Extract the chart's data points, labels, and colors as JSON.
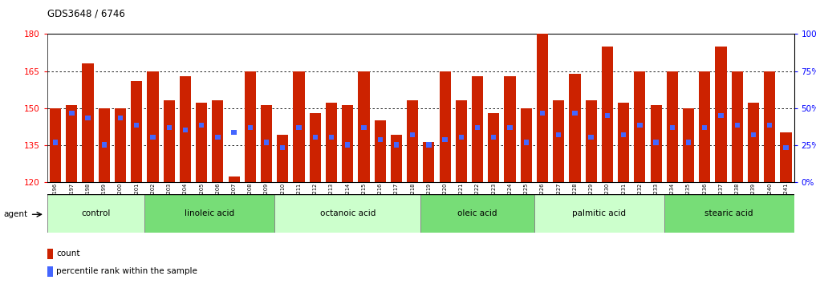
{
  "title": "GDS3648 / 6746",
  "ylim": [
    120,
    180
  ],
  "yticks": [
    120,
    135,
    150,
    165,
    180
  ],
  "right_ylabels": [
    "0%",
    "25%",
    "50%",
    "75%",
    "100%"
  ],
  "right_ytick_vals": [
    120,
    135,
    150,
    165,
    180
  ],
  "bar_color": "#CC2200",
  "percentile_color": "#4466FF",
  "bg_color": "#FFFFFF",
  "samples": [
    "GSM525196",
    "GSM525197",
    "GSM525198",
    "GSM525199",
    "GSM525200",
    "GSM525201",
    "GSM525202",
    "GSM525203",
    "GSM525204",
    "GSM525205",
    "GSM525206",
    "GSM525207",
    "GSM525208",
    "GSM525209",
    "GSM525210",
    "GSM525211",
    "GSM525212",
    "GSM525213",
    "GSM525214",
    "GSM525215",
    "GSM525216",
    "GSM525217",
    "GSM525218",
    "GSM525219",
    "GSM525220",
    "GSM525221",
    "GSM525222",
    "GSM525223",
    "GSM525224",
    "GSM525225",
    "GSM525226",
    "GSM525227",
    "GSM525228",
    "GSM525229",
    "GSM525230",
    "GSM525231",
    "GSM525232",
    "GSM525233",
    "GSM525234",
    "GSM525235",
    "GSM525236",
    "GSM525237",
    "GSM525238",
    "GSM525239",
    "GSM525240",
    "GSM525241"
  ],
  "counts": [
    150,
    151,
    168,
    150,
    150,
    161,
    165,
    153,
    163,
    152,
    153,
    122,
    165,
    151,
    139,
    165,
    148,
    152,
    151,
    165,
    145,
    139,
    153,
    136,
    165,
    153,
    163,
    148,
    163,
    150,
    180,
    153,
    164,
    153,
    175,
    152,
    165,
    151,
    165,
    150,
    165,
    175,
    165,
    152,
    165,
    140
  ],
  "percentile_values": [
    136,
    148,
    146,
    135,
    146,
    143,
    138,
    142,
    141,
    143,
    138,
    140,
    142,
    136,
    134,
    142,
    138,
    138,
    135,
    142,
    137,
    135,
    139,
    135,
    137,
    138,
    142,
    138,
    142,
    136,
    148,
    139,
    148,
    138,
    147,
    139,
    143,
    136,
    142,
    136,
    142,
    147,
    143,
    139,
    143,
    134
  ],
  "groups": [
    {
      "label": "control",
      "start": 0,
      "end": 5,
      "color": "#CCFFCC"
    },
    {
      "label": "linoleic acid",
      "start": 6,
      "end": 13,
      "color": "#77DD77"
    },
    {
      "label": "octanoic acid",
      "start": 14,
      "end": 22,
      "color": "#CCFFCC"
    },
    {
      "label": "oleic acid",
      "start": 23,
      "end": 29,
      "color": "#77DD77"
    },
    {
      "label": "palmitic acid",
      "start": 30,
      "end": 37,
      "color": "#CCFFCC"
    },
    {
      "label": "stearic acid",
      "start": 38,
      "end": 45,
      "color": "#77DD77"
    }
  ],
  "dotted_lines": [
    135,
    150,
    165
  ],
  "solid_line": 180
}
